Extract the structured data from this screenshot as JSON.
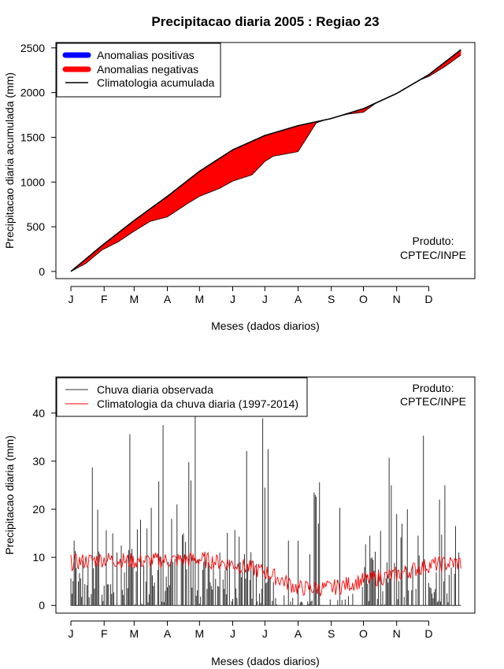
{
  "chart_data": [
    {
      "type": "area",
      "title": "Precipitacao diaria 2005 : Regiao 23",
      "xlabel": "Meses (dados diarios)",
      "ylabel": "Precipitacao diaria acumulada (mm)",
      "ylim": [
        -80,
        2560
      ],
      "xlim": [
        -13,
        378
      ],
      "yticks": [
        0,
        500,
        1000,
        1500,
        2000,
        2500
      ],
      "month_labels": [
        "J",
        "F",
        "M",
        "A",
        "M",
        "J",
        "J",
        "A",
        "S",
        "O",
        "N",
        "D"
      ],
      "month_days": [
        1,
        32,
        60,
        91,
        121,
        152,
        182,
        213,
        244,
        274,
        305,
        335
      ],
      "legend": {
        "position": "top-left",
        "entries": [
          {
            "label": "Anomalias positivas",
            "color": "#0000ff"
          },
          {
            "label": "Anomalias negativas",
            "color": "#ff0000"
          },
          {
            "label": "Climatologia acumulada",
            "color": "#000000"
          }
        ]
      },
      "note_lines": [
        "Produto:",
        "CPTEC/INPE"
      ],
      "climatology_knots": {
        "day": [
          1,
          30,
          60,
          91,
          121,
          152,
          182,
          213,
          244,
          274,
          305,
          335,
          365
        ],
        "mm": [
          0,
          290,
          570,
          840,
          1120,
          1360,
          1520,
          1630,
          1710,
          1820,
          1990,
          2200,
          2480
        ]
      },
      "observed_knots": {
        "day": [
          1,
          15,
          30,
          45,
          60,
          75,
          91,
          110,
          121,
          140,
          152,
          170,
          182,
          190,
          200,
          213,
          230,
          244,
          260,
          274,
          290,
          305,
          320,
          335,
          350,
          365
        ],
        "mm": [
          0,
          90,
          240,
          330,
          450,
          560,
          610,
          760,
          840,
          930,
          1010,
          1080,
          1230,
          1290,
          1310,
          1340,
          1660,
          1720,
          1760,
          1780,
          1920,
          2010,
          2110,
          2180,
          2290,
          2420
        ]
      }
    },
    {
      "type": "line",
      "xlabel": "Meses (dados diarios)",
      "ylabel": "Precipitacao diaria (mm)",
      "ylim": [
        -1.6,
        47.5
      ],
      "xlim": [
        -13,
        378
      ],
      "yticks": [
        0,
        10,
        20,
        30,
        40
      ],
      "month_labels": [
        "J",
        "F",
        "M",
        "A",
        "M",
        "J",
        "J",
        "A",
        "S",
        "O",
        "N",
        "D"
      ],
      "month_days": [
        1,
        32,
        60,
        91,
        121,
        152,
        182,
        213,
        244,
        274,
        305,
        335
      ],
      "legend": {
        "position": "top-left",
        "entries": [
          {
            "label": "Chuva diaria observada",
            "color": "#333333"
          },
          {
            "label": "Climatologia da chuva diaria (1997-2014)",
            "color": "#ff0000"
          }
        ]
      },
      "note_lines": [
        "Produto:",
        "CPTEC/INPE"
      ],
      "observed_peaks": {
        "day": [
          4,
          17,
          21,
          26,
          40,
          44,
          56,
          63,
          66,
          72,
          76,
          83,
          87,
          95,
          100,
          106,
          111,
          113,
          117,
          134,
          140,
          159,
          165,
          180,
          182,
          185,
          204,
          228,
          229,
          230,
          232,
          233,
          252,
          280,
          290,
          298,
          300,
          305,
          310,
          315,
          330,
          345,
          350,
          360,
          363
        ],
        "mm": [
          13.5,
          8,
          28.7,
          19.9,
          15,
          11,
          35.6,
          15.8,
          17.8,
          16,
          20.3,
          25.8,
          37.5,
          18,
          21,
          15,
          29.8,
          26,
          39.5,
          8,
          11,
          9,
          32.1,
          38.9,
          24.5,
          32.5,
          13.5,
          23.5,
          23,
          22.6,
          17,
          25.6,
          20.3,
          14.5,
          15.5,
          30.7,
          25,
          19,
          17,
          20,
          35.3,
          22,
          25,
          16.5,
          11
        ]
      },
      "climatology_knots": {
        "day": [
          1,
          30,
          60,
          91,
          121,
          152,
          182,
          213,
          244,
          274,
          305,
          335,
          365
        ],
        "mm": [
          8.9,
          9.6,
          9.2,
          9.4,
          9.6,
          8.6,
          7,
          3.6,
          3.6,
          5.2,
          6.4,
          8.4,
          8.9
        ]
      }
    }
  ]
}
